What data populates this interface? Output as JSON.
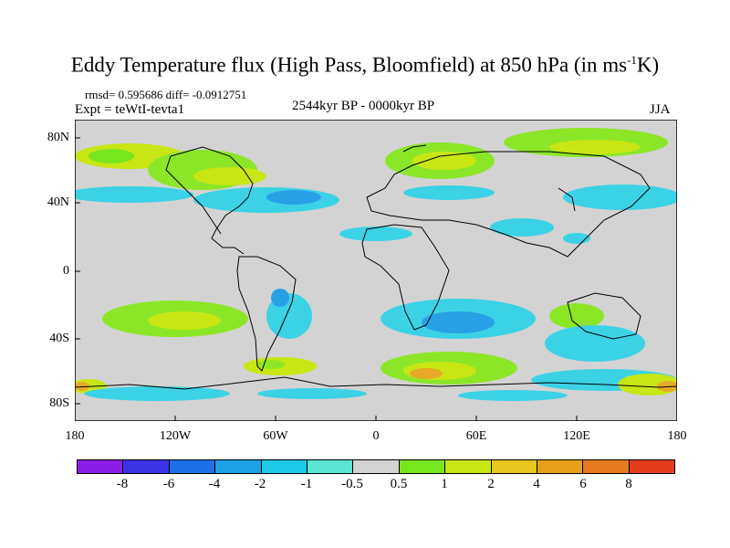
{
  "title_main": "Eddy Temperature flux (High Pass, Bloomfield) at 850 hPa (in ms",
  "title_sup": "-1",
  "title_end": "K)",
  "stats": "rmsd= 0.595686 diff= -0.0912751",
  "expt": "Expt = teWtI-tevta1",
  "period": "2544kyr BP - 0000kyr BP",
  "season": "JJA",
  "y_labels": [
    "80N",
    "40N",
    "0",
    "40S",
    "80S"
  ],
  "x_labels": [
    "180",
    "120W",
    "60W",
    "0",
    "60E",
    "120E",
    "180"
  ],
  "colorbar": {
    "labels": [
      "-8",
      "-6",
      "-4",
      "-2",
      "-1",
      "-0.5",
      "0.5",
      "1",
      "2",
      "4",
      "6",
      "8"
    ],
    "colors": [
      "#8a1ee6",
      "#3c32e6",
      "#1e6ee6",
      "#1ea0e6",
      "#1ecbe6",
      "#5ae6d2",
      "#d3d3d3",
      "#78e61e",
      "#c8e614",
      "#e6c81e",
      "#e6a01e",
      "#e6781e",
      "#e63c1e"
    ]
  },
  "colors": {
    "background": "#d3d3d3",
    "lightblue": "#3cd2e6",
    "midblue": "#28a0e6",
    "green": "#8ce628",
    "yellow": "#cde61e",
    "orange": "#e6aa28"
  }
}
